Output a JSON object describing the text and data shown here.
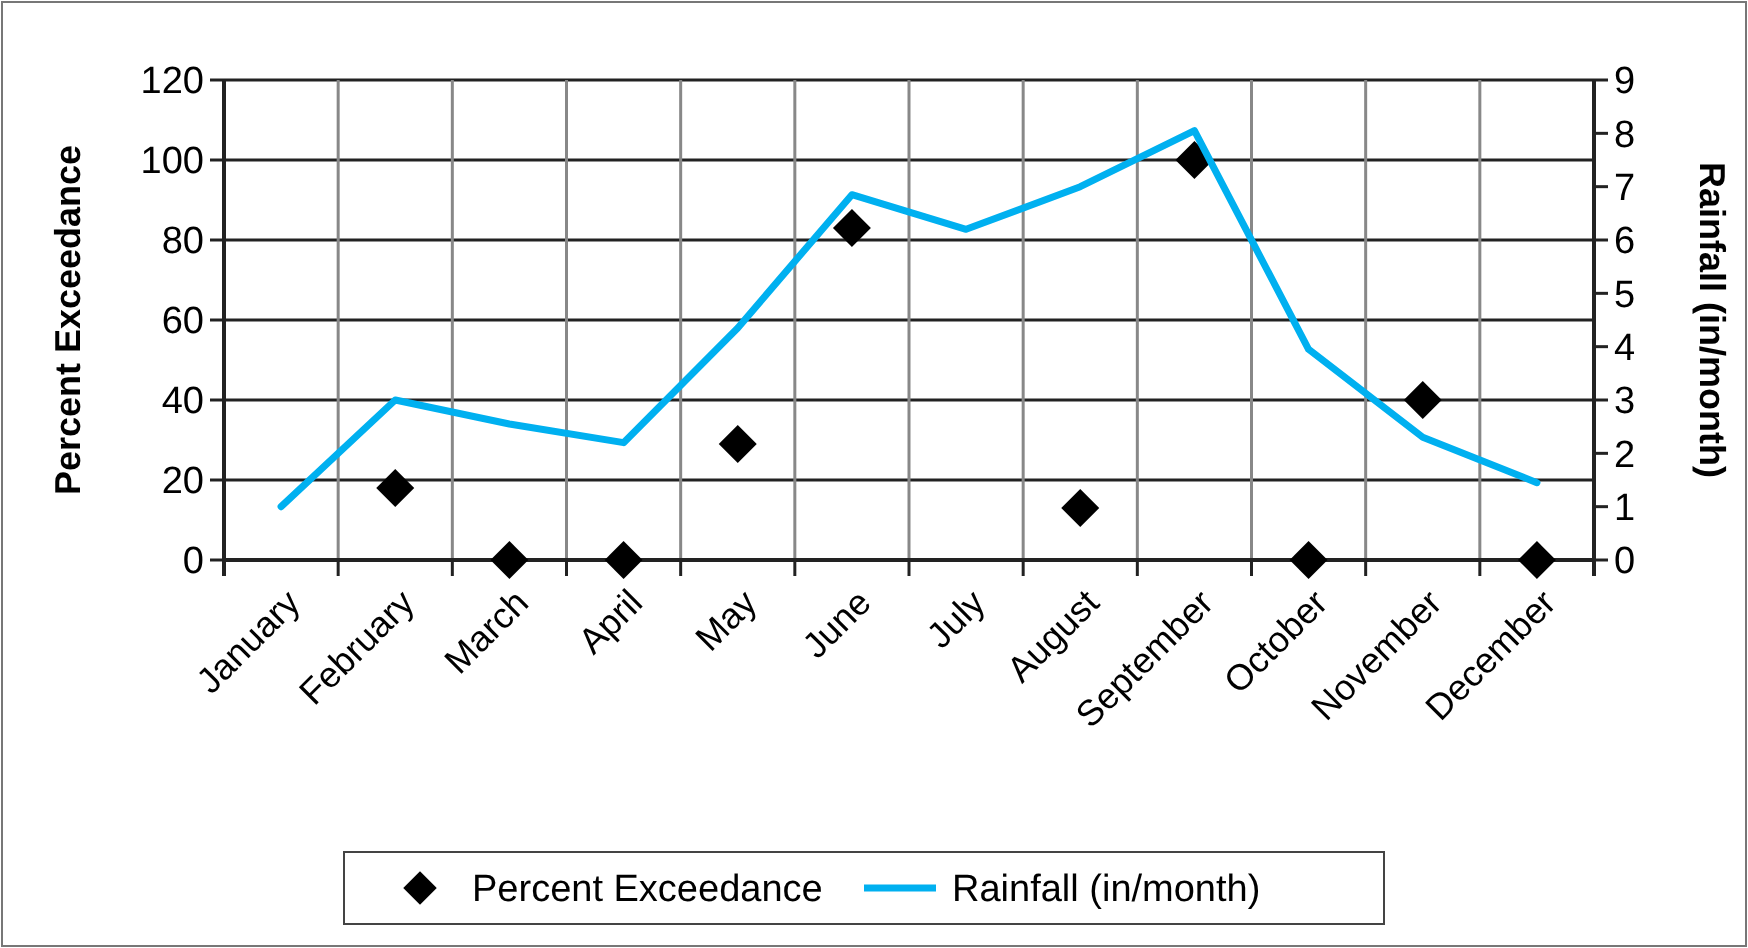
{
  "chart_data": {
    "type": "line",
    "categories": [
      "January",
      "February",
      "March",
      "April",
      "May",
      "June",
      "July",
      "August",
      "September",
      "October",
      "November",
      "December"
    ],
    "ylabel": "Percent Exceedance",
    "y2label": "Rainfall (in/month)",
    "ylim": [
      0,
      120
    ],
    "yticks": [
      0,
      20,
      40,
      60,
      80,
      100,
      120
    ],
    "y2lim": [
      0,
      9
    ],
    "y2ticks": [
      0,
      1,
      2,
      3,
      4,
      5,
      6,
      7,
      8,
      9
    ],
    "grid": true,
    "legend": "bottom",
    "series": [
      {
        "name": "Percent Exceedance",
        "type": "scatter",
        "marker": "diamond",
        "color": "#000000",
        "values": [
          null,
          18,
          0,
          0,
          29,
          83,
          null,
          13,
          100,
          0,
          40,
          0
        ]
      },
      {
        "name": "Rainfall (in/month)",
        "axis": "y2",
        "color": "#00b0f0",
        "line_style": "solid",
        "values": [
          1.0,
          3.0,
          2.55,
          2.2,
          4.35,
          6.85,
          6.2,
          7.0,
          8.05,
          3.95,
          2.3,
          1.45
        ]
      }
    ]
  }
}
